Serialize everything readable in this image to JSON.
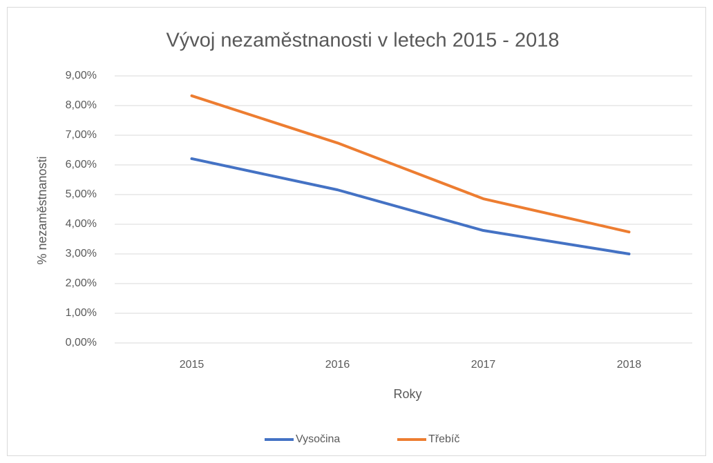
{
  "chart_data": {
    "type": "line",
    "title": "Vývoj nezaměstnanosti v letech  2015 - 2018",
    "x_label": "Roky",
    "y_label": "% nezaměstnanosti",
    "categories": [
      "2015",
      "2016",
      "2017",
      "2018"
    ],
    "series": [
      {
        "name": "Vysočina",
        "color": "#4472c4",
        "values": [
          6.21,
          5.16,
          3.79,
          3.0
        ]
      },
      {
        "name": "Třebíč",
        "color": "#ed7d31",
        "values": [
          8.33,
          6.74,
          4.86,
          3.74
        ]
      }
    ],
    "ylim": [
      0,
      9
    ],
    "yticks": [
      {
        "value": 0,
        "label": "0,00%"
      },
      {
        "value": 1,
        "label": "1,00%"
      },
      {
        "value": 2,
        "label": "2,00%"
      },
      {
        "value": 3,
        "label": "3,00%"
      },
      {
        "value": 4,
        "label": "4,00%"
      },
      {
        "value": 5,
        "label": "5,00%"
      },
      {
        "value": 6,
        "label": "6,00%"
      },
      {
        "value": 7,
        "label": "7,00%"
      },
      {
        "value": 8,
        "label": "8,00%"
      },
      {
        "value": 9,
        "label": "9,00%"
      }
    ],
    "grid": true,
    "legend": "bottom"
  }
}
